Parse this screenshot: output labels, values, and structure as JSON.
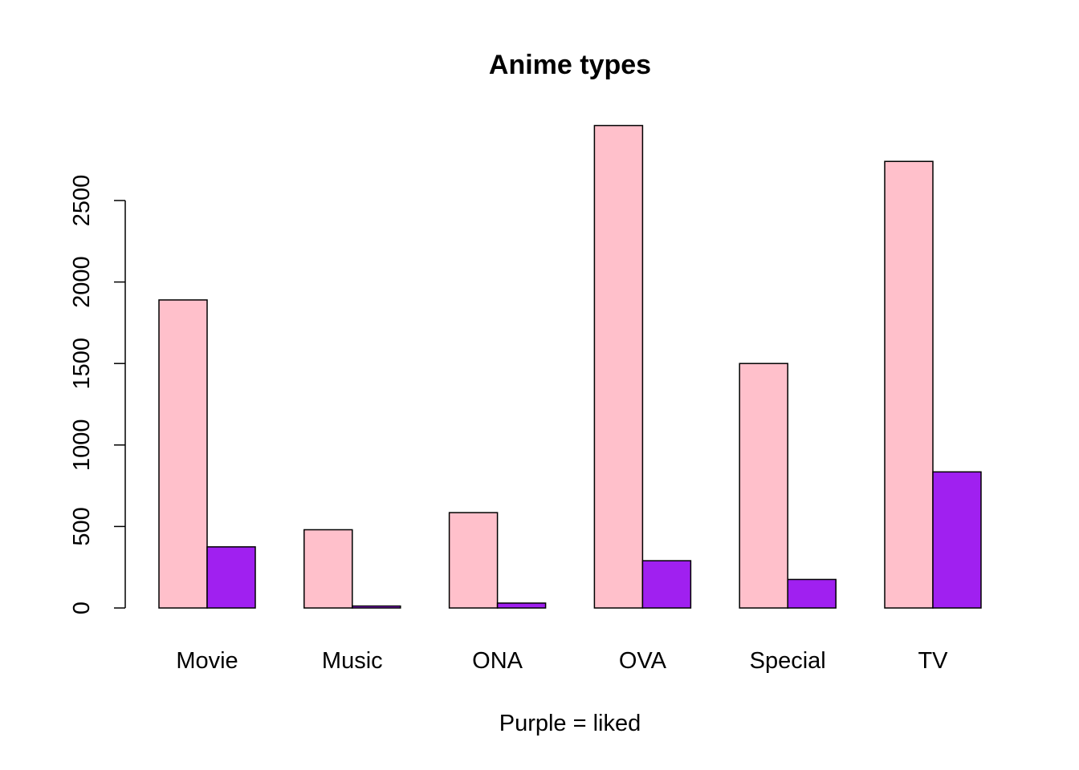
{
  "chart_data": {
    "type": "bar",
    "title": "Anime types",
    "xlabel": "Purple = liked",
    "ylabel": "",
    "categories": [
      "Movie",
      "Music",
      "ONA",
      "OVA",
      "Special",
      "TV"
    ],
    "series": [
      {
        "values": [
          1890,
          480,
          585,
          2960,
          1500,
          2740
        ]
      },
      {
        "values": [
          375,
          12,
          30,
          290,
          175,
          835
        ]
      }
    ],
    "series_colors": [
      "#ffc0cb",
      "#a020f0"
    ],
    "yticks": [
      0,
      500,
      1000,
      1500,
      2000,
      2500
    ],
    "ylim": [
      0,
      2960
    ],
    "grid": false,
    "legend": "none"
  }
}
